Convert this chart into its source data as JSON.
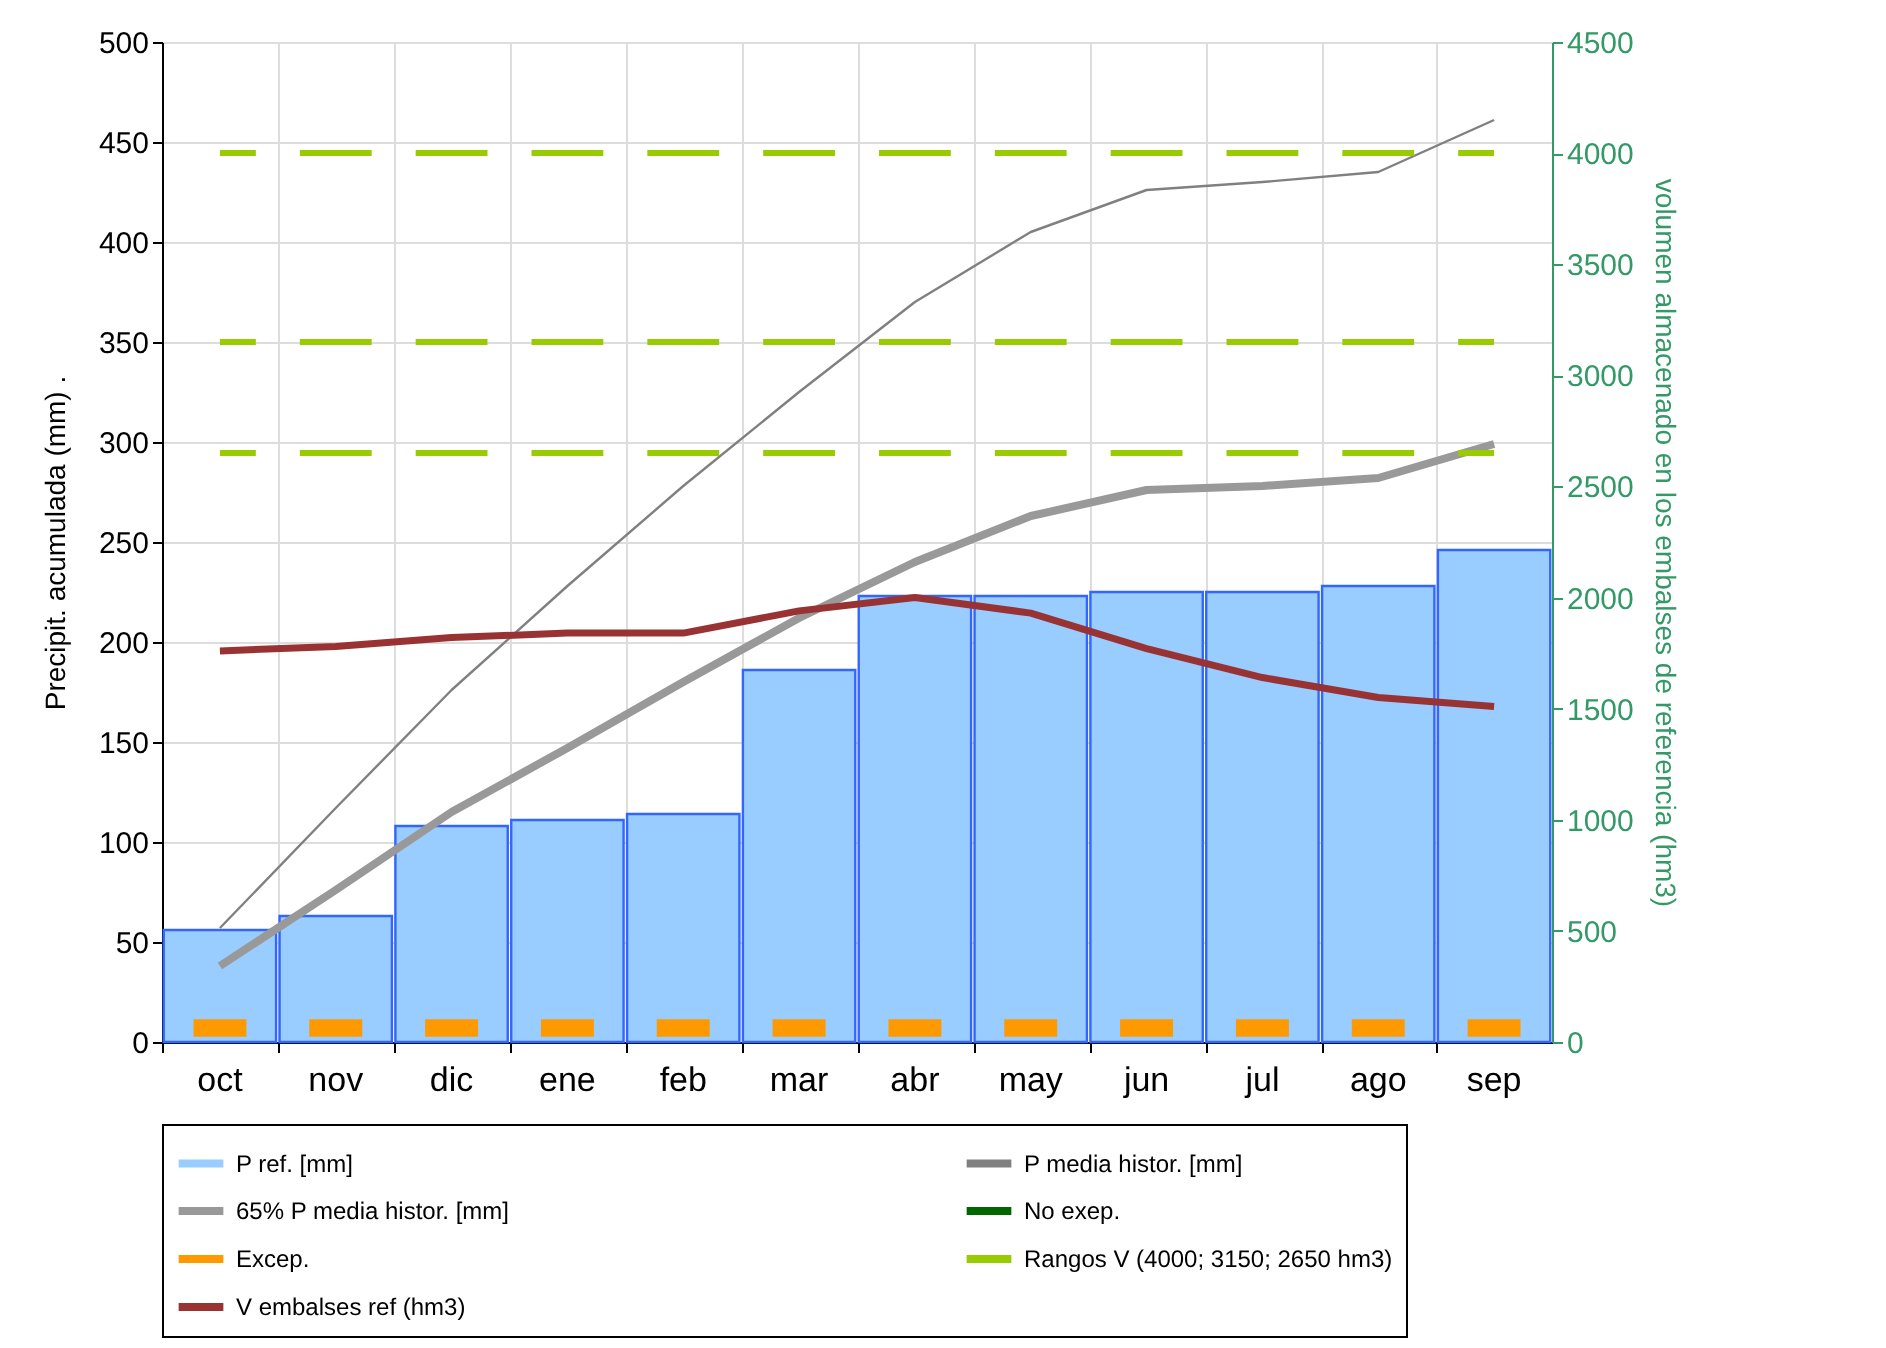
{
  "chart_data": {
    "type": "bar",
    "xlabel": null,
    "ylabel": "Precipit. acumulada (mm) .",
    "y2label": "volumen almacenado en los embalses de referencia (hm3)",
    "categories": [
      "oct",
      "nov",
      "dic",
      "ene",
      "feb",
      "mar",
      "abr",
      "may",
      "jun",
      "jul",
      "ago",
      "sep"
    ],
    "ylim": [
      0,
      500
    ],
    "yticks": [
      0,
      50,
      100,
      150,
      200,
      250,
      300,
      350,
      400,
      450,
      500
    ],
    "y2lim": [
      0,
      4500
    ],
    "y2ticks": [
      0,
      500,
      1000,
      1500,
      2000,
      2500,
      3000,
      3500,
      4000,
      4500
    ],
    "grid": true,
    "legend": "bottom",
    "series": [
      {
        "name": "P ref. [mm]",
        "color": "#99ccff",
        "values": [
          56,
          63,
          108,
          111,
          114,
          186,
          223,
          223,
          225,
          225,
          228,
          246
        ]
      },
      {
        "name": "P media histor. [mm]",
        "type": "line",
        "color": "#808080",
        "values": [
          57,
          117,
          176,
          228,
          278,
          325,
          370,
          405,
          426,
          430,
          435,
          461
        ]
      },
      {
        "name": "65% P media histor. [mm]",
        "type": "line",
        "color": "#999999",
        "values": [
          38,
          76,
          115,
          147,
          180,
          212,
          240,
          263,
          276,
          278,
          282,
          299
        ]
      },
      {
        "name": "No exep.",
        "type": "scatter",
        "color": "#006600",
        "values": [
          null,
          null,
          null,
          null,
          null,
          null,
          null,
          null,
          null,
          null,
          null,
          null
        ]
      },
      {
        "name": "Excep.",
        "type": "scatter",
        "color": "#ff9900",
        "values": [
          7,
          7,
          7,
          7,
          7,
          7,
          7,
          7,
          7,
          7,
          7,
          7
        ]
      },
      {
        "name": "Rangos V (4000; 3150; 2650 hm3)",
        "type": "line",
        "axis": "y2",
        "line_style": "dashed",
        "color": "#99cc00",
        "values": [
          4000,
          4000,
          4000,
          4000,
          4000,
          4000,
          4000,
          4000,
          4000,
          4000,
          4000,
          4000
        ]
      },
      {
        "name": "V embalses ref (hm3)",
        "type": "line",
        "axis": "y2",
        "color": "#993333",
        "values": [
          1760,
          1780,
          1820,
          1840,
          1840,
          1940,
          2000,
          1930,
          1770,
          1640,
          1550,
          1510
        ]
      },
      {
        "type": "line",
        "axis": "y2",
        "line_style": "dashed",
        "color": "#99cc00",
        "values": [
          3150,
          3150,
          3150,
          3150,
          3150,
          3150,
          3150,
          3150,
          3150,
          3150,
          3150,
          3150
        ]
      },
      {
        "type": "line",
        "axis": "y2",
        "line_style": "dashed",
        "color": "#99cc00",
        "values": [
          2650,
          2650,
          2650,
          2650,
          2650,
          2650,
          2650,
          2650,
          2650,
          2650,
          2650,
          2650
        ]
      }
    ]
  }
}
